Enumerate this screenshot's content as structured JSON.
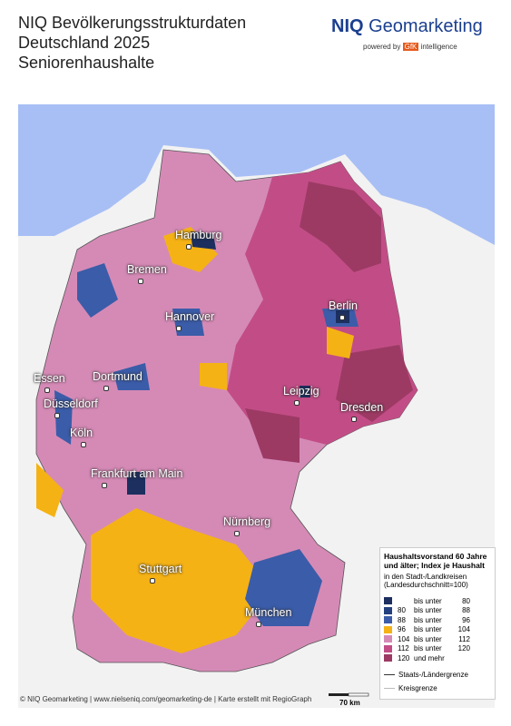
{
  "header": {
    "title_lines": [
      "NIQ Bevölkerungsstrukturdaten",
      "Deutschland 2025",
      "Seniorenhaushalte"
    ],
    "logo": {
      "brand": "NIQ",
      "product": "Geomarketing",
      "powered": "powered by",
      "gfk": "GfK",
      "intelligence": "intelligence"
    }
  },
  "map": {
    "cities": [
      {
        "label": "Hamburg"
      },
      {
        "label": "Bremen"
      },
      {
        "label": "Hannover"
      },
      {
        "label": "Berlin"
      },
      {
        "label": "Essen"
      },
      {
        "label": "Dortmund"
      },
      {
        "label": "Düsseldorf"
      },
      {
        "label": "Köln"
      },
      {
        "label": "Leipzig"
      },
      {
        "label": "Dresden"
      },
      {
        "label": "Frankfurt am Main"
      },
      {
        "label": "Nürnberg"
      },
      {
        "label": "Stuttgart"
      },
      {
        "label": "München"
      }
    ]
  },
  "legend": {
    "title": "Haushaltsvorstand 60 Jahre und älter; Index je Haushalt",
    "subtitle": "in den Stadt-/Landkreisen (Landesdurchschnitt=100)",
    "classes": [
      {
        "mid": "bis unter",
        "to": "80",
        "color": "#1c2f5e"
      },
      {
        "from": "80",
        "mid": "bis unter",
        "to": "88",
        "color": "#24407e"
      },
      {
        "from": "88",
        "mid": "bis unter",
        "to": "96",
        "color": "#3b5ca8"
      },
      {
        "from": "96",
        "mid": "bis unter",
        "to": "104",
        "color": "#f5b215"
      },
      {
        "from": "104",
        "mid": "bis unter",
        "to": "112",
        "color": "#d58ab6"
      },
      {
        "from": "112",
        "mid": "bis unter",
        "to": "120",
        "color": "#c24d86"
      },
      {
        "from": "120",
        "mid": "und mehr",
        "color": "#9c3a64"
      }
    ],
    "borders": [
      "Staats-/Ländergrenze",
      "Kreisgrenze"
    ]
  },
  "footer": {
    "credit": "© NIQ Geomarketing | www.nielseniq.com/geomarketing-de | Karte erstellt mit RegioGraph",
    "scale": "70 km"
  }
}
